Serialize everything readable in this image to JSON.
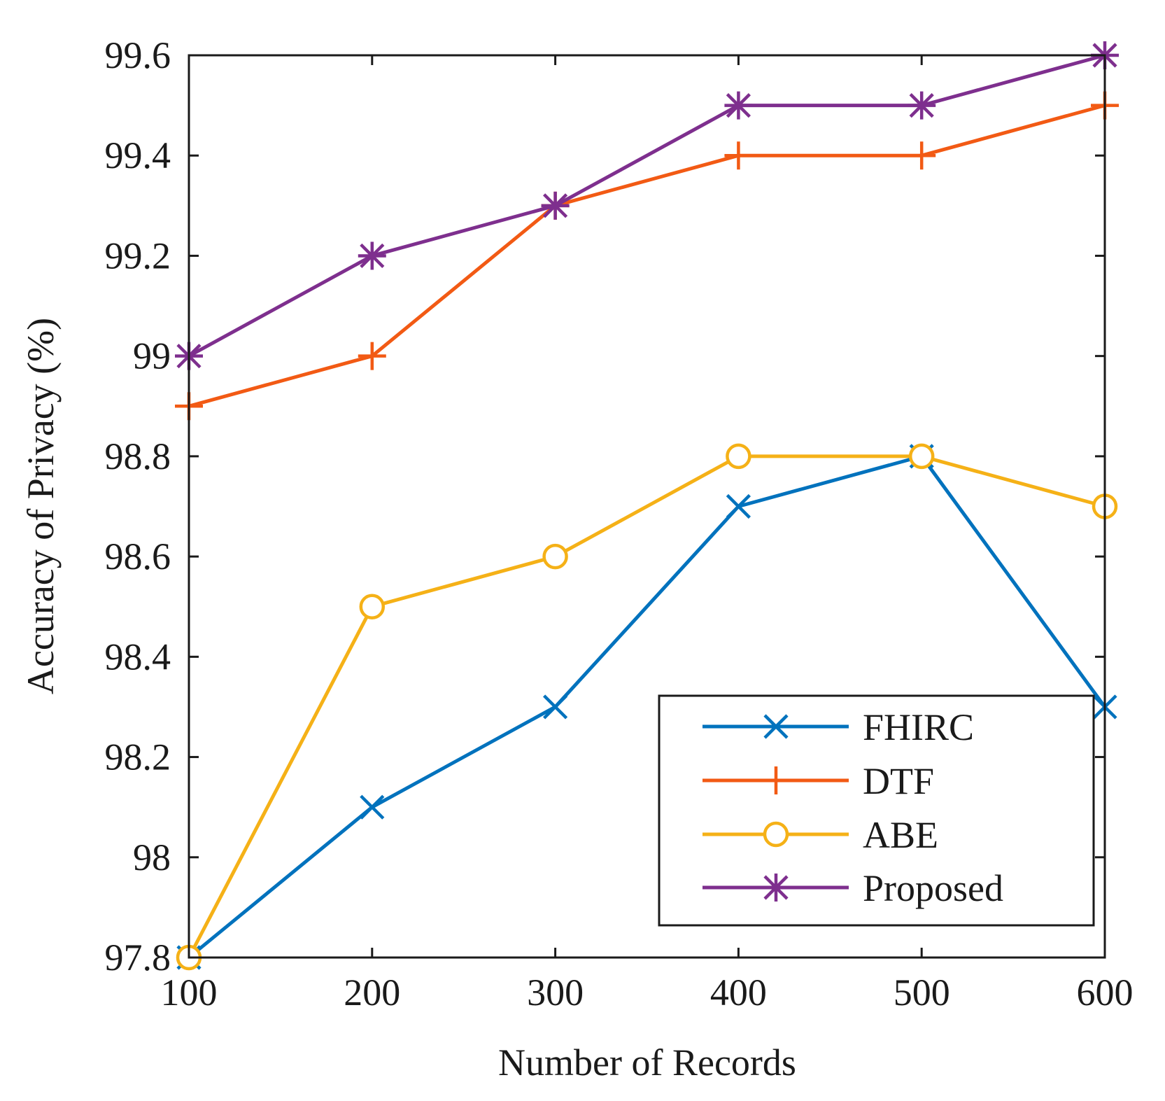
{
  "chart_data": {
    "type": "line",
    "title": "",
    "xlabel": "Number of Records",
    "ylabel": "Accuracy of Privacy (%)",
    "x": [
      100,
      200,
      300,
      400,
      500,
      600
    ],
    "xlim": [
      100,
      600
    ],
    "ylim": [
      97.8,
      99.6
    ],
    "xticks": [
      "100",
      "200",
      "300",
      "400",
      "500",
      "600"
    ],
    "yticks": [
      "97.8",
      "98",
      "98.2",
      "98.4",
      "98.6",
      "98.8",
      "99",
      "99.2",
      "99.4",
      "99.6"
    ],
    "grid": false,
    "legend_position": "bottom-right",
    "series": [
      {
        "name": "FHIRC",
        "color": "#0072BD",
        "marker": "x",
        "values": [
          97.8,
          98.1,
          98.3,
          98.7,
          98.8,
          98.3
        ]
      },
      {
        "name": "DTF",
        "color": "#F25A14",
        "marker": "plus",
        "values": [
          98.9,
          99.0,
          99.3,
          99.4,
          99.4,
          99.5
        ]
      },
      {
        "name": "ABE",
        "color": "#F5B117",
        "marker": "circle",
        "values": [
          97.8,
          98.5,
          98.6,
          98.8,
          98.8,
          98.7
        ]
      },
      {
        "name": "Proposed",
        "color": "#7E2F8E",
        "marker": "asterisk",
        "values": [
          99.0,
          99.2,
          99.3,
          99.5,
          99.5,
          99.6
        ]
      }
    ]
  }
}
